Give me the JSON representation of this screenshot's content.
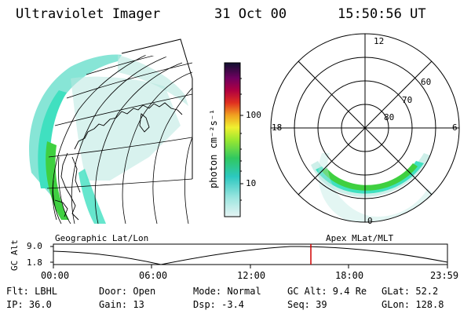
{
  "header": {
    "instrument": "Ultraviolet Imager",
    "date": "31 Oct 00",
    "time": "15:50:56 UT"
  },
  "colorbar": {
    "unit_label": "photon cm⁻²s⁻¹",
    "ticks": [
      "100",
      "10"
    ]
  },
  "polar_plot": {
    "mlt_labels": [
      "12",
      "18",
      "6",
      "0"
    ],
    "lat_labels": [
      "60",
      "70",
      "80"
    ]
  },
  "panel_labels": {
    "geographic": "Geographic Lat/Lon",
    "apex": "Apex MLat/MLT"
  },
  "alt_plot": {
    "ylabel": "GC Alt",
    "yticks": [
      "9.0",
      "1.8"
    ],
    "xticks": [
      "00:00",
      "06:00",
      "12:00",
      "18:00",
      "23:59"
    ],
    "cursor_color": "#d00000"
  },
  "info": {
    "flt": "Flt: LBHL",
    "ip": "IP: 36.0",
    "door": "Door: Open",
    "gain": "Gain: 13",
    "mode": "Mode: Normal",
    "dsp": "Dsp:   -3.4",
    "gcalt": "GC Alt: 9.4 Re",
    "seq": "Seq: 39",
    "glat": "GLat:  52.2",
    "glon": "GLon: 128.8"
  },
  "colors": {
    "aurora_high": "#3fd040",
    "aurora_mid": "#40e0c0",
    "aurora_low": "#b8e8e0"
  }
}
